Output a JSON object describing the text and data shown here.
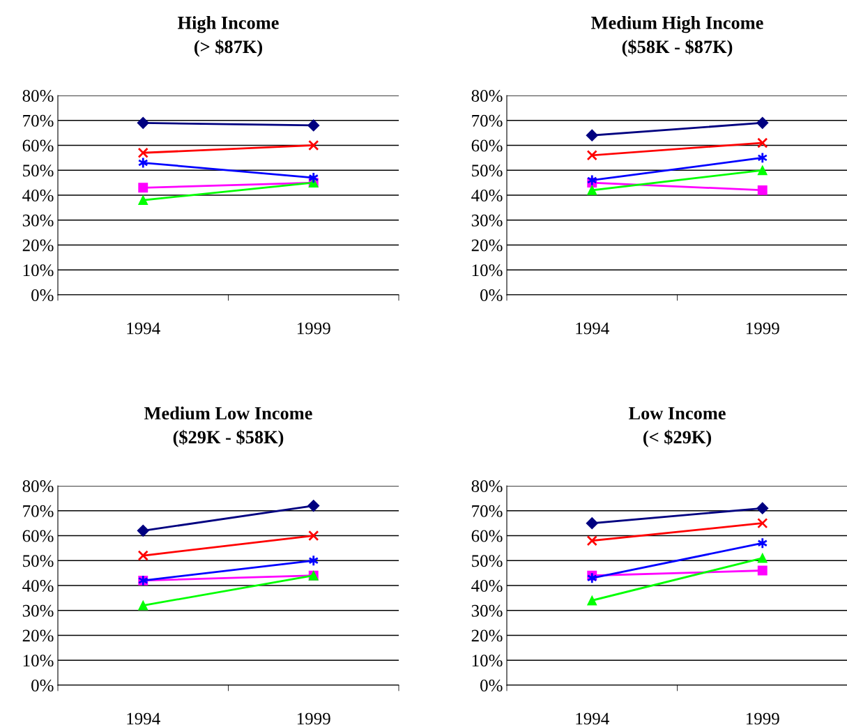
{
  "chart_data": [
    {
      "type": "line",
      "title": "High Income\n(> $87K)",
      "categories": [
        "1994",
        "1999"
      ],
      "ylim": [
        0,
        80
      ],
      "yticks": [
        {
          "value": 0,
          "label": "0%"
        },
        {
          "value": 10,
          "label": "10%"
        },
        {
          "value": 20,
          "label": "20%"
        },
        {
          "value": 30,
          "label": "30%"
        },
        {
          "value": 40,
          "label": "40%"
        },
        {
          "value": 50,
          "label": "50%"
        },
        {
          "value": 60,
          "label": "60%"
        },
        {
          "value": 70,
          "label": "70%"
        },
        {
          "value": 80,
          "label": "80%"
        }
      ],
      "grid": "y",
      "legend": false,
      "series": [
        {
          "color": "#000080",
          "marker": "diamond",
          "values": [
            69,
            68
          ]
        },
        {
          "color": "#ff00ff",
          "marker": "square",
          "values": [
            43,
            45
          ]
        },
        {
          "color": "#00ff00",
          "marker": "triangle",
          "values": [
            38,
            45
          ]
        },
        {
          "color": "#ff0000",
          "marker": "cross",
          "values": [
            57,
            60
          ]
        },
        {
          "color": "#0000ff",
          "marker": "cross",
          "values": [
            53,
            47
          ]
        }
      ]
    },
    {
      "type": "line",
      "title": "Medium High Income\n($58K - $87K)",
      "categories": [
        "1994",
        "1999"
      ],
      "ylim": [
        0,
        80
      ],
      "yticks": [
        {
          "value": 0,
          "label": "0%"
        },
        {
          "value": 10,
          "label": "10%"
        },
        {
          "value": 20,
          "label": "20%"
        },
        {
          "value": 30,
          "label": "30%"
        },
        {
          "value": 40,
          "label": "40%"
        },
        {
          "value": 50,
          "label": "50%"
        },
        {
          "value": 60,
          "label": "60%"
        },
        {
          "value": 70,
          "label": "70%"
        },
        {
          "value": 80,
          "label": "80%"
        }
      ],
      "grid": "y",
      "legend": false,
      "series": [
        {
          "color": "#000080",
          "marker": "diamond",
          "values": [
            64,
            69
          ]
        },
        {
          "color": "#ff00ff",
          "marker": "square",
          "values": [
            45,
            42
          ]
        },
        {
          "color": "#00ff00",
          "marker": "triangle",
          "values": [
            42,
            50
          ]
        },
        {
          "color": "#ff0000",
          "marker": "cross",
          "values": [
            56,
            61
          ]
        },
        {
          "color": "#0000ff",
          "marker": "cross",
          "values": [
            46,
            55
          ]
        }
      ]
    },
    {
      "type": "line",
      "title": "Medium Low Income\n($29K - $58K)",
      "categories": [
        "1994",
        "1999"
      ],
      "ylim": [
        0,
        80
      ],
      "yticks": [
        {
          "value": 0,
          "label": "0%"
        },
        {
          "value": 10,
          "label": "10%"
        },
        {
          "value": 20,
          "label": "20%"
        },
        {
          "value": 30,
          "label": "30%"
        },
        {
          "value": 40,
          "label": "40%"
        },
        {
          "value": 50,
          "label": "50%"
        },
        {
          "value": 60,
          "label": "60%"
        },
        {
          "value": 70,
          "label": "70%"
        },
        {
          "value": 80,
          "label": "80%"
        }
      ],
      "grid": "y",
      "legend": false,
      "series": [
        {
          "color": "#000080",
          "marker": "diamond",
          "values": [
            62,
            72
          ]
        },
        {
          "color": "#ff00ff",
          "marker": "square",
          "values": [
            42,
            44
          ]
        },
        {
          "color": "#00ff00",
          "marker": "triangle",
          "values": [
            32,
            44
          ]
        },
        {
          "color": "#ff0000",
          "marker": "cross",
          "values": [
            52,
            60
          ]
        },
        {
          "color": "#0000ff",
          "marker": "cross",
          "values": [
            42,
            50
          ]
        }
      ]
    },
    {
      "type": "line",
      "title": "Low Income\n(< $29K)",
      "categories": [
        "1994",
        "1999"
      ],
      "ylim": [
        0,
        80
      ],
      "yticks": [
        {
          "value": 0,
          "label": "0%"
        },
        {
          "value": 10,
          "label": "10%"
        },
        {
          "value": 20,
          "label": "20%"
        },
        {
          "value": 30,
          "label": "30%"
        },
        {
          "value": 40,
          "label": "40%"
        },
        {
          "value": 50,
          "label": "50%"
        },
        {
          "value": 60,
          "label": "60%"
        },
        {
          "value": 70,
          "label": "70%"
        },
        {
          "value": 80,
          "label": "80%"
        }
      ],
      "grid": "y",
      "legend": false,
      "series": [
        {
          "color": "#000080",
          "marker": "diamond",
          "values": [
            65,
            71
          ]
        },
        {
          "color": "#ff00ff",
          "marker": "square",
          "values": [
            44,
            46
          ]
        },
        {
          "color": "#00ff00",
          "marker": "triangle",
          "values": [
            34,
            51
          ]
        },
        {
          "color": "#ff0000",
          "marker": "cross",
          "values": [
            58,
            65
          ]
        },
        {
          "color": "#0000ff",
          "marker": "cross",
          "values": [
            43,
            57
          ]
        }
      ]
    }
  ]
}
